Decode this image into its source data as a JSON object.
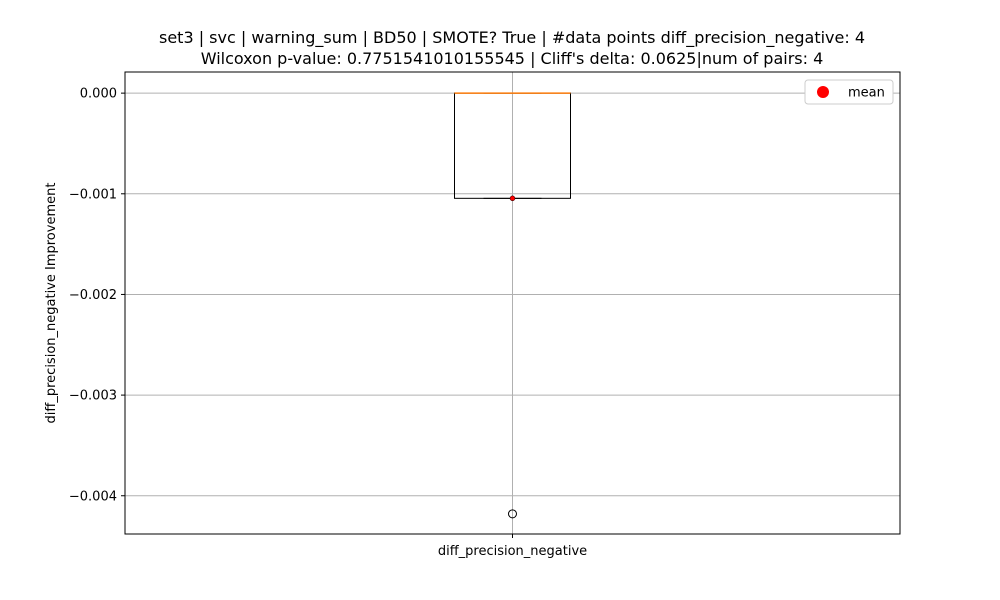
{
  "chart_data": {
    "type": "box",
    "title": "set3 | svc | warning_sum | BD50 | SMOTE? True | #data points diff_precision_negative: 4",
    "subtitle": "Wilcoxon p-value: 0.7751541010155545 | Cliff's delta: 0.0625|num of pairs: 4",
    "xlabel": "",
    "ylabel": "diff_precision_negative Improvement",
    "categories": [
      "diff_precision_negative"
    ],
    "ylim": [
      -0.00438,
      0.00021
    ],
    "yticks": [
      0.0,
      -0.001,
      -0.002,
      -0.003,
      -0.004
    ],
    "ytick_labels": [
      "0.000",
      "−0.001",
      "−0.002",
      "−0.003",
      "−0.004"
    ],
    "grid": true,
    "box": {
      "q1": -0.001045,
      "median": 0.0,
      "q3": 0.0,
      "whisker_low": -0.001045,
      "whisker_high": 0.0,
      "mean": -0.001045,
      "outliers": [
        -0.00418
      ]
    },
    "legend": {
      "placement": "top-right",
      "entries": [
        {
          "label": "mean",
          "color": "#ff0000"
        }
      ]
    },
    "colors": {
      "median": "#ff7f0e",
      "mean": "#ff0000",
      "grid": "#b0b0b0",
      "box": "#000000"
    }
  }
}
